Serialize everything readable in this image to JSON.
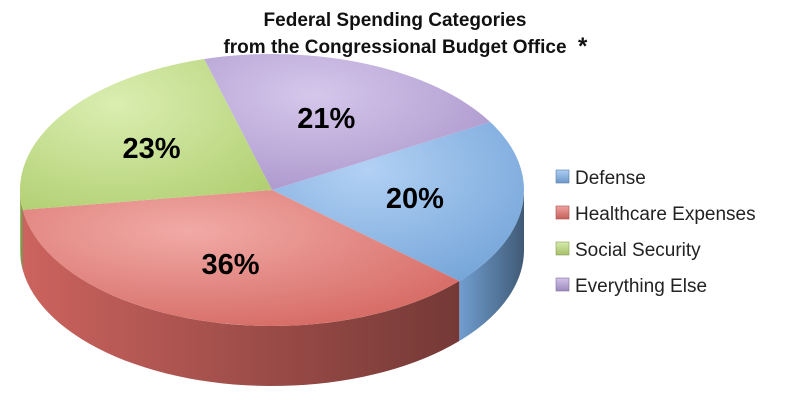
{
  "title": {
    "line1": "Federal Spending Categories",
    "line2": "from the Congressional Budget Office",
    "mark": "*"
  },
  "chart_data": {
    "type": "pie",
    "title": "Federal Spending Categories from the Congressional Budget Office*",
    "unit": "%",
    "categories": [
      "Defense",
      "Healthcare Expenses",
      "Social Security",
      "Everything Else"
    ],
    "values": [
      20,
      36,
      23,
      21
    ],
    "labels": [
      "20%",
      "36%",
      "23%",
      "21%"
    ],
    "colors": [
      "#7fb3ec",
      "#e8716b",
      "#c2e27d",
      "#b9a2dd"
    ],
    "legend": {
      "position": "right",
      "items": [
        "Defense",
        "Healthcare Expenses",
        "Social Security",
        "Everything Else"
      ]
    },
    "three_d": true
  }
}
